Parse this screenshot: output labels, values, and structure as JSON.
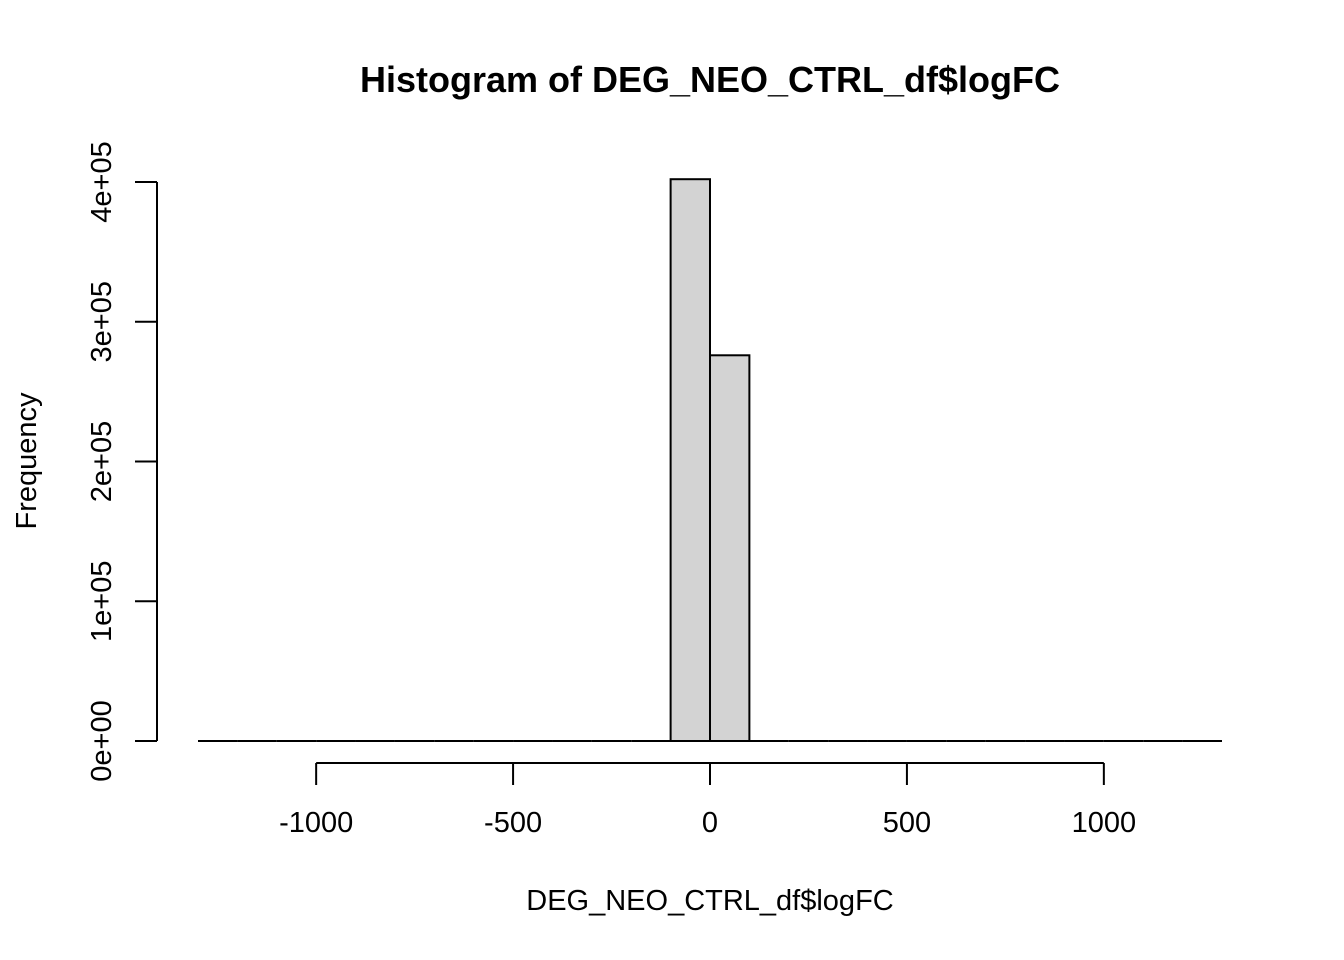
{
  "chart_data": {
    "type": "bar",
    "title": "Histogram of DEG_NEO_CTRL_df$logFC",
    "xlabel": "DEG_NEO_CTRL_df$logFC",
    "ylabel": "Frequency",
    "bar_color": "#d3d3d3",
    "bins": [
      {
        "start": -1300,
        "end": -1200,
        "count": 0
      },
      {
        "start": -1200,
        "end": -1100,
        "count": 0
      },
      {
        "start": -1100,
        "end": -1000,
        "count": 0
      },
      {
        "start": -1000,
        "end": -900,
        "count": 0
      },
      {
        "start": -900,
        "end": -800,
        "count": 0
      },
      {
        "start": -800,
        "end": -700,
        "count": 0
      },
      {
        "start": -700,
        "end": -600,
        "count": 0
      },
      {
        "start": -600,
        "end": -500,
        "count": 0
      },
      {
        "start": -500,
        "end": -400,
        "count": 0
      },
      {
        "start": -400,
        "end": -300,
        "count": 0
      },
      {
        "start": -300,
        "end": -200,
        "count": 0
      },
      {
        "start": -200,
        "end": -100,
        "count": 0
      },
      {
        "start": -100,
        "end": 0,
        "count": 402000
      },
      {
        "start": 0,
        "end": 100,
        "count": 276000
      },
      {
        "start": 100,
        "end": 200,
        "count": 0
      },
      {
        "start": 200,
        "end": 300,
        "count": 0
      },
      {
        "start": 300,
        "end": 400,
        "count": 0
      },
      {
        "start": 400,
        "end": 500,
        "count": 0
      },
      {
        "start": 500,
        "end": 600,
        "count": 0
      },
      {
        "start": 600,
        "end": 700,
        "count": 0
      },
      {
        "start": 700,
        "end": 800,
        "count": 0
      },
      {
        "start": 800,
        "end": 900,
        "count": 0
      },
      {
        "start": 900,
        "end": 1000,
        "count": 0
      },
      {
        "start": 1000,
        "end": 1100,
        "count": 0
      },
      {
        "start": 1100,
        "end": 1200,
        "count": 0
      },
      {
        "start": 1200,
        "end": 1300,
        "count": 0
      }
    ],
    "xlim": [
      -1300,
      1300
    ],
    "ylim": [
      0,
      400000
    ],
    "x_ticks": [
      {
        "value": -1000,
        "label": "-1000"
      },
      {
        "value": -500,
        "label": "-500"
      },
      {
        "value": 0,
        "label": "0"
      },
      {
        "value": 500,
        "label": "500"
      },
      {
        "value": 1000,
        "label": "1000"
      }
    ],
    "y_ticks": [
      {
        "value": 0,
        "label": "0e+00"
      },
      {
        "value": 100000,
        "label": "1e+05"
      },
      {
        "value": 200000,
        "label": "2e+05"
      },
      {
        "value": 300000,
        "label": "3e+05"
      },
      {
        "value": 400000,
        "label": "4e+05"
      }
    ],
    "grid": false
  }
}
